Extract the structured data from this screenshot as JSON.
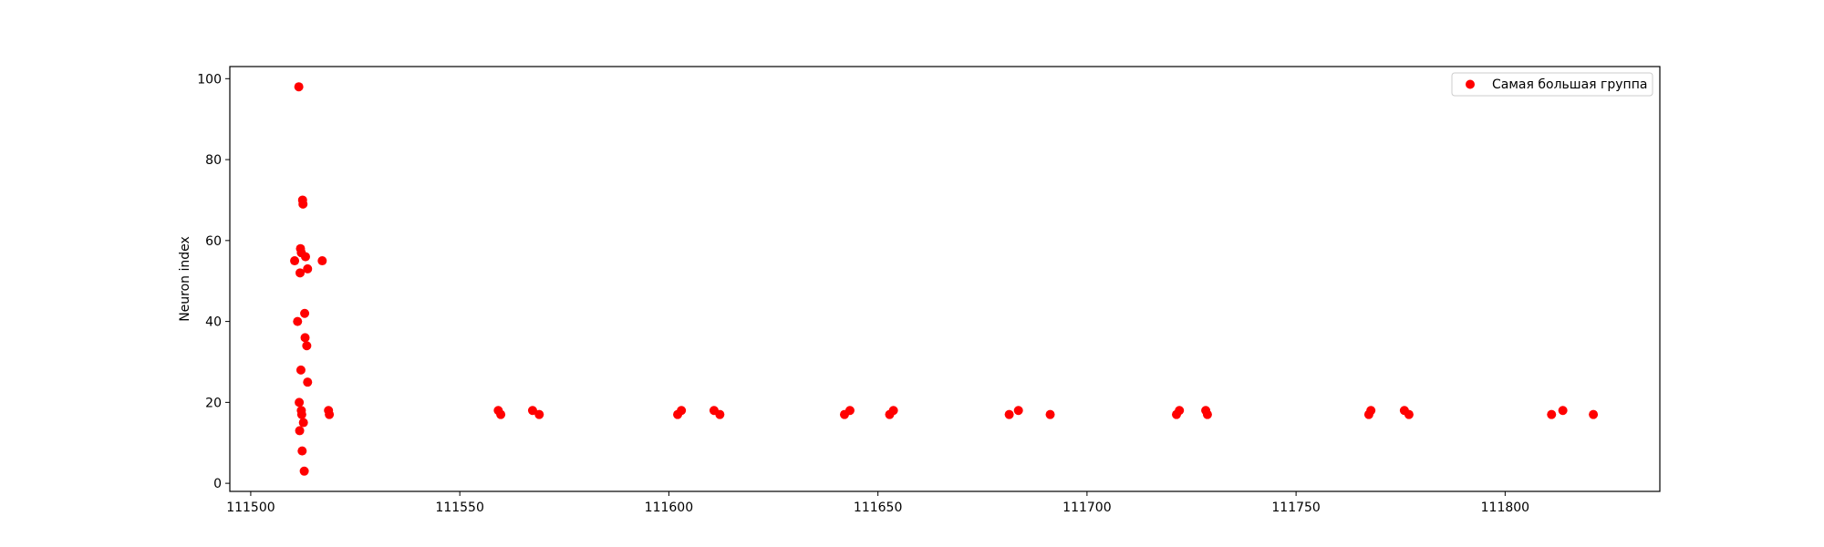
{
  "chart_data": {
    "type": "scatter",
    "title": "",
    "xlabel": "",
    "ylabel": "Neuron index",
    "xlim": [
      111495,
      111837
    ],
    "ylim": [
      -2,
      103
    ],
    "x_ticks": [
      111500,
      111550,
      111600,
      111650,
      111700,
      111750,
      111800
    ],
    "y_ticks": [
      0,
      20,
      40,
      60,
      80,
      100
    ],
    "grid": false,
    "legend_position": "top-right",
    "series": [
      {
        "name": "Самая большая группа",
        "color": "#ff0000",
        "points": [
          [
            111510.5,
            55
          ],
          [
            111511.2,
            40
          ],
          [
            111511.5,
            98
          ],
          [
            111511.6,
            20
          ],
          [
            111511.7,
            13
          ],
          [
            111511.8,
            52
          ],
          [
            111511.9,
            58
          ],
          [
            111512.0,
            28
          ],
          [
            111512.1,
            57
          ],
          [
            111512.1,
            18
          ],
          [
            111512.2,
            17
          ],
          [
            111512.3,
            8
          ],
          [
            111512.4,
            70
          ],
          [
            111512.5,
            69
          ],
          [
            111512.6,
            15
          ],
          [
            111512.8,
            3
          ],
          [
            111512.9,
            42
          ],
          [
            111513.0,
            36
          ],
          [
            111513.1,
            56
          ],
          [
            111513.4,
            34
          ],
          [
            111513.6,
            53
          ],
          [
            111513.6,
            25
          ],
          [
            111517.1,
            55
          ],
          [
            111518.6,
            18
          ],
          [
            111518.8,
            17
          ],
          [
            111559.2,
            18
          ],
          [
            111559.8,
            17
          ],
          [
            111567.4,
            18
          ],
          [
            111569.0,
            17
          ],
          [
            111602.1,
            17
          ],
          [
            111603.0,
            18
          ],
          [
            111610.8,
            18
          ],
          [
            111612.2,
            17
          ],
          [
            111642.0,
            17
          ],
          [
            111643.3,
            18
          ],
          [
            111652.8,
            17
          ],
          [
            111653.7,
            18
          ],
          [
            111681.4,
            17
          ],
          [
            111683.6,
            18
          ],
          [
            111691.2,
            17
          ],
          [
            111721.4,
            17
          ],
          [
            111722.1,
            18
          ],
          [
            111728.4,
            18
          ],
          [
            111728.8,
            17
          ],
          [
            111767.4,
            17
          ],
          [
            111767.9,
            18
          ],
          [
            111775.9,
            18
          ],
          [
            111777.0,
            17
          ],
          [
            111811.1,
            17
          ],
          [
            111813.8,
            18
          ],
          [
            111821.1,
            17
          ]
        ]
      }
    ]
  }
}
